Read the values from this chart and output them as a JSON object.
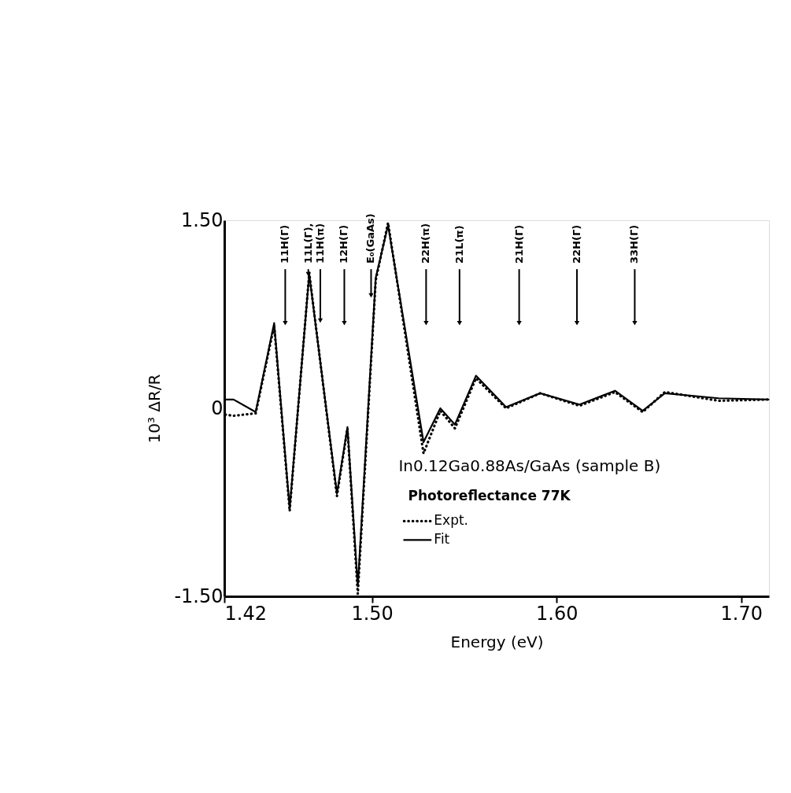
{
  "chart_data": {
    "type": "line",
    "xlabel": "Energy (eV)",
    "ylabel": "10³ ΔR/R",
    "xlim": [
      1.42,
      1.715
    ],
    "ylim": [
      -1.5,
      1.5
    ],
    "xticks": [
      1.42,
      {
        "value": 1.5,
        "label": "1.50"
      },
      {
        "value": 1.6,
        "label": "1.60"
      },
      {
        "value": 1.7,
        "label": "1.70"
      }
    ],
    "yticks": [
      {
        "value": -1.5,
        "label": "-1.50"
      },
      0,
      {
        "value": 1.5,
        "label": "1.50"
      }
    ],
    "grid": false,
    "legend": "bottom",
    "marker": "none",
    "series": [
      {
        "name": "Expt.",
        "color": "#000000",
        "line_style": "dotted",
        "x": [
          1.4206,
          1.425,
          1.437,
          1.447,
          1.4554,
          1.466,
          1.481,
          1.4867,
          1.4923,
          1.502,
          1.5087,
          1.5279,
          1.537,
          1.5449,
          1.5563,
          1.5726,
          1.5911,
          1.6124,
          1.6316,
          1.6466,
          1.6586,
          1.6878,
          1.7148
        ],
        "values": [
          -0.05,
          -0.06,
          -0.04,
          0.66,
          -0.82,
          1.08,
          -0.7,
          -0.16,
          -1.48,
          1.02,
          1.48,
          -0.36,
          -0.02,
          -0.16,
          0.24,
          0.0,
          0.12,
          0.02,
          0.13,
          -0.03,
          0.13,
          0.06,
          0.07
        ]
      },
      {
        "name": "Fit",
        "color": "#000000",
        "line_style": "solid",
        "x": [
          1.4206,
          1.425,
          1.437,
          1.447,
          1.4554,
          1.466,
          1.481,
          1.4867,
          1.4923,
          1.502,
          1.5087,
          1.5279,
          1.537,
          1.5449,
          1.5563,
          1.5726,
          1.5911,
          1.6124,
          1.6316,
          1.6466,
          1.6586,
          1.6878,
          1.7148
        ],
        "values": [
          0.07,
          0.07,
          -0.03,
          0.68,
          -0.8,
          1.07,
          -0.68,
          -0.15,
          -1.42,
          1.04,
          1.46,
          -0.27,
          0.0,
          -0.13,
          0.26,
          0.01,
          0.12,
          0.03,
          0.14,
          -0.02,
          0.12,
          0.08,
          0.07
        ]
      }
    ],
    "annotations": [
      {
        "text": "11H(Γ)",
        "x": 1.453,
        "y": 0.68
      },
      {
        "text": "11L(Γ),",
        "x": 1.4655,
        "y": 1.07
      },
      {
        "text": "11H(π)",
        "x": 1.472,
        "y": 0.7
      },
      {
        "text": "12H(Γ)",
        "x": 1.485,
        "y": 0.68
      },
      {
        "text": "E₀(GaAs)",
        "x": 1.4995,
        "y": 0.9
      },
      {
        "text": "22H(π)",
        "x": 1.5293,
        "y": 0.68
      },
      {
        "text": "21L(π)",
        "x": 1.5474,
        "y": 0.68
      },
      {
        "text": "21H(Γ)",
        "x": 1.5797,
        "y": 0.68
      },
      {
        "text": "22H(Γ)",
        "x": 1.611,
        "y": 0.68
      },
      {
        "text": "33H(Γ)",
        "x": 1.6423,
        "y": 0.68
      },
      "In0.12Ga0.88As/GaAs (sample B)",
      "Photoreflectance   77K"
    ]
  }
}
